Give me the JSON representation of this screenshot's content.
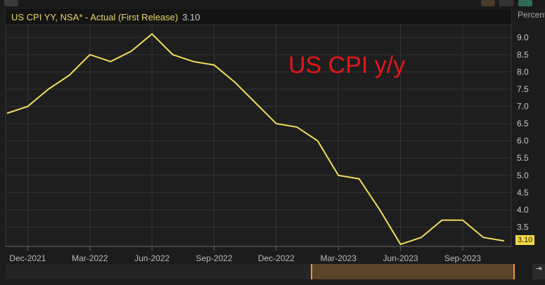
{
  "legend": {
    "series": "US CPI YY, NSA* - Actual (First Release)",
    "last_value": "3.10"
  },
  "unit_label": "Percent",
  "annotation": "US CPI y/y",
  "colors": {
    "line": "#f2dc5d",
    "annotation": "#e3161b",
    "background": "#1c1c1c"
  },
  "chart_data": {
    "type": "line",
    "title": "US CPI y/y",
    "ylabel": "Percent",
    "x": [
      "Nov-2021",
      "Dec-2021",
      "Jan-2022",
      "Feb-2022",
      "Mar-2022",
      "Apr-2022",
      "May-2022",
      "Jun-2022",
      "Jul-2022",
      "Aug-2022",
      "Sep-2022",
      "Oct-2022",
      "Nov-2022",
      "Dec-2022",
      "Jan-2023",
      "Feb-2023",
      "Mar-2023",
      "Apr-2023",
      "May-2023",
      "Jun-2023",
      "Jul-2023",
      "Aug-2023",
      "Sep-2023",
      "Oct-2023",
      "Nov-2023"
    ],
    "series": [
      {
        "name": "US CPI YY, NSA* - Actual (First Release)",
        "values": [
          6.8,
          7.0,
          7.5,
          7.9,
          8.5,
          8.3,
          8.6,
          9.1,
          8.5,
          8.3,
          8.2,
          7.7,
          7.1,
          6.5,
          6.4,
          6.0,
          5.0,
          4.9,
          4.0,
          3.0,
          3.2,
          3.7,
          3.7,
          3.2,
          3.1
        ]
      }
    ],
    "xticks": [
      "Dec-2021",
      "Mar-2022",
      "Jun-2022",
      "Sep-2022",
      "Dec-2022",
      "Mar-2023",
      "Jun-2023",
      "Sep-2023"
    ],
    "xtick_index": [
      1,
      4,
      7,
      10,
      13,
      16,
      19,
      22
    ],
    "yticks": [
      "3.5",
      "4.0",
      "4.5",
      "5.0",
      "5.5",
      "6.0",
      "6.5",
      "7.0",
      "7.5",
      "8.0",
      "8.5",
      "9.0"
    ],
    "ylim": [
      2.94,
      9.8
    ],
    "grid": true,
    "legend_position": "top-left"
  }
}
